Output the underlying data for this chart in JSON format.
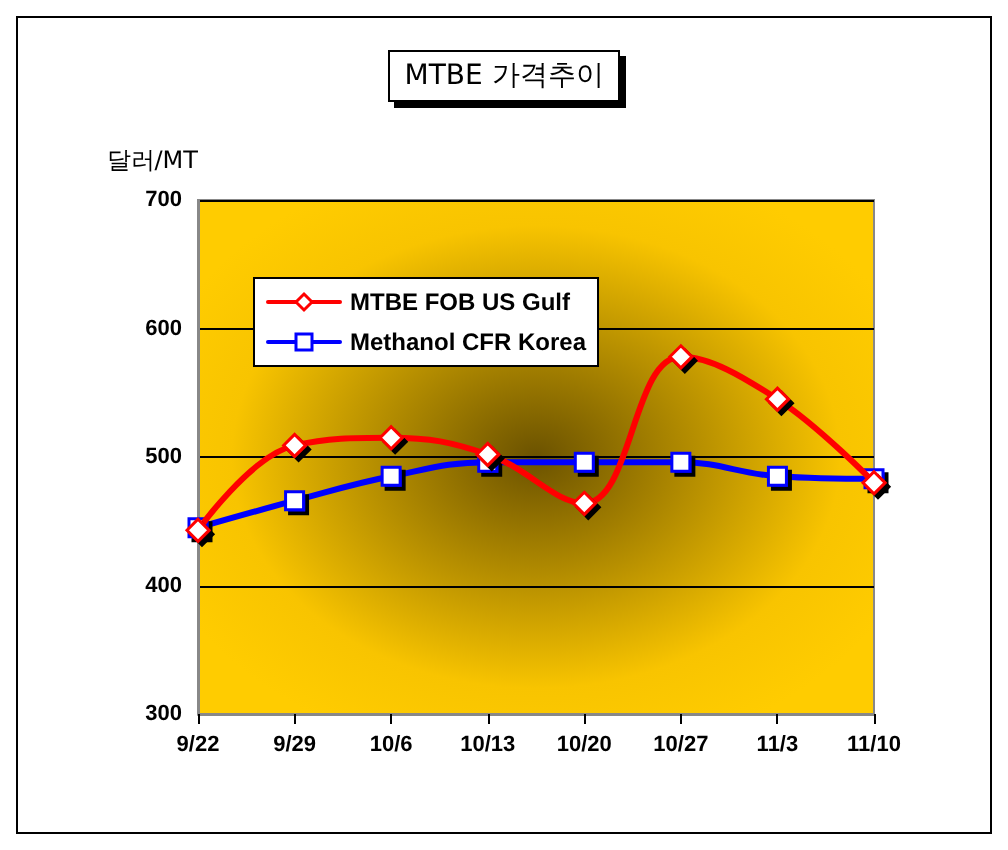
{
  "chart_data": {
    "type": "line",
    "title": "MTBE 가격추이",
    "ylabel": "달러/MT",
    "categories": [
      "9/22",
      "9/29",
      "10/6",
      "10/13",
      "10/20",
      "10/27",
      "11/3",
      "11/10"
    ],
    "series": [
      {
        "name": "MTBE FOB US Gulf",
        "color": "#ff0000",
        "marker": "diamond",
        "values": [
          443,
          509,
          515,
          502,
          464,
          578,
          545,
          480
        ]
      },
      {
        "name": "Methanol CFR Korea",
        "color": "#0000ff",
        "marker": "square",
        "values": [
          445,
          466,
          485,
          496,
          496,
          496,
          485,
          483
        ]
      }
    ],
    "ylim": [
      300,
      700
    ],
    "yticks": [
      300,
      400,
      500,
      600,
      700
    ],
    "grid": "y",
    "legend": "top left",
    "line_style": "solid"
  }
}
